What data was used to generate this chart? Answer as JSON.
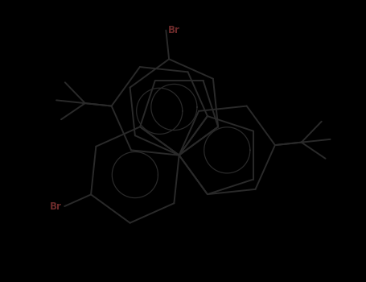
{
  "background": "#000000",
  "bond_color": "#2a2a2a",
  "br_color": "#6B2A2A",
  "text_color": "#2a2a2a",
  "figsize": [
    4.55,
    3.5
  ],
  "dpi": 100,
  "bond_lw": 1.4,
  "br_fs": 8.5
}
